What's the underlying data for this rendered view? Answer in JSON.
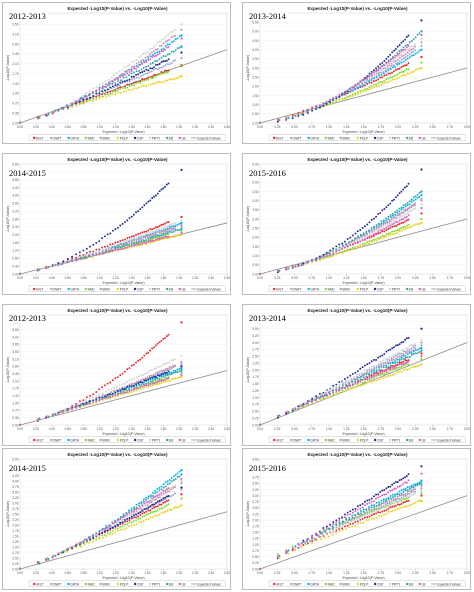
{
  "figure": {
    "colors": {
      "HIST": "#e8242b",
      "DWIT": "#9aa5d6",
      "GRTH": "#00b0f0",
      "NMC": "#7fdc2a",
      "BRKI": "#c890a6",
      "POLP": "#e9d21c",
      "CSP": "#1f2a8f",
      "PRTY": "#d3d3d3",
      "EB": "#2aa6a6",
      "LB": "#e05cc7",
      "Expected Values": "#8c8c8c"
    }
  },
  "chart_data": [
    {
      "type": "scatter",
      "title": "Expected -Log10(P-Value) vs. -Log10(P-Value)",
      "period": "2012-2013",
      "xlabel": "Expected -Log10(P-Value)",
      "ylabel": "-Log10(P-Value)",
      "xlim": [
        0,
        2.6
      ],
      "ylim": [
        0,
        3.9
      ],
      "xticks": [
        "0.00",
        "0.20",
        "0.40",
        "0.60",
        "0.80",
        "1.00",
        "1.20",
        "1.40",
        "1.60",
        "1.80",
        "2.00",
        "2.20",
        "2.40",
        "2.60"
      ],
      "yticks": [
        "0.00",
        "0.35",
        "0.70",
        "1.05",
        "1.40",
        "1.75",
        "2.10",
        "2.45",
        "2.80",
        "3.15",
        "3.50",
        "3.85"
      ],
      "expected_line": [
        [
          0,
          0
        ],
        [
          2.6,
          2.6
        ]
      ],
      "series": [
        {
          "name": "HIST",
          "final_y": 2.05,
          "curve": 1.05
        },
        {
          "name": "DWIT",
          "final_y": 2.3,
          "curve": 1.1
        },
        {
          "name": "GRTH",
          "final_y": 3.1,
          "curve": 1.3
        },
        {
          "name": "NMC",
          "final_y": 2.0,
          "curve": 1.1
        },
        {
          "name": "BRKI",
          "final_y": 3.3,
          "curve": 1.4
        },
        {
          "name": "POLP",
          "final_y": 1.65,
          "curve": 0.9
        },
        {
          "name": "CSP",
          "final_y": 2.5,
          "curve": 1.2
        },
        {
          "name": "PRTY",
          "final_y": 3.5,
          "curve": 1.35
        },
        {
          "name": "EB",
          "final_y": 2.7,
          "curve": 1.2
        },
        {
          "name": "LB",
          "final_y": 3.0,
          "curve": 1.3
        }
      ],
      "legend": [
        "HIST",
        "DWIT",
        "GRTH",
        "NMC",
        "BRKI",
        "POLP",
        "CSP",
        "PRTY",
        "EB",
        "LB",
        "Expected Values"
      ],
      "legend_position": "bottom"
    },
    {
      "type": "scatter",
      "title": "Expected -Log10(P-Value) vs. -Log10(P-Value)",
      "period": "2013-2014",
      "xlabel": "Expected -Log10(P-Value)",
      "ylabel": "-Log10(P-Value)",
      "xlim": [
        0,
        3.0
      ],
      "ylim": [
        0,
        6.0
      ],
      "xticks": [
        "0.00",
        "0.25",
        "0.50",
        "0.75",
        "1.00",
        "1.25",
        "1.50",
        "1.75",
        "2.00",
        "2.25",
        "2.50",
        "2.75",
        "3.00"
      ],
      "yticks": [
        "0.00",
        "0.50",
        "1.00",
        "1.50",
        "2.00",
        "2.50",
        "3.00",
        "3.50",
        "4.00",
        "4.50",
        "5.00",
        "5.50",
        "6.00"
      ],
      "expected_line": [
        [
          0,
          0
        ],
        [
          3.0,
          3.0
        ]
      ],
      "series": [
        {
          "name": "HIST",
          "final_y": 3.6,
          "curve": 1.3
        },
        {
          "name": "DWIT",
          "final_y": 4.2,
          "curve": 1.5
        },
        {
          "name": "GRTH",
          "final_y": 4.0,
          "curve": 1.45
        },
        {
          "name": "NMC",
          "final_y": 3.3,
          "curve": 1.35
        },
        {
          "name": "BRKI",
          "final_y": 4.4,
          "curve": 1.5
        },
        {
          "name": "POLP",
          "final_y": 3.0,
          "curve": 1.25
        },
        {
          "name": "CSP",
          "final_y": 5.6,
          "curve": 1.9
        },
        {
          "name": "PRTY",
          "final_y": 4.6,
          "curve": 1.55
        },
        {
          "name": "EB",
          "final_y": 5.0,
          "curve": 1.7
        },
        {
          "name": "LB",
          "final_y": 4.8,
          "curve": 1.6
        }
      ],
      "legend": [
        "HIST",
        "DWIT",
        "GRTH",
        "NMC",
        "BRKI",
        "POLP",
        "CSP",
        "PRTY",
        "EB",
        "LB",
        "Expected Values"
      ],
      "legend_position": "bottom"
    },
    {
      "type": "scatter",
      "title": "Expected -Log10(P-Value) vs. -Log10(P-Value)",
      "period": "2014-2015",
      "xlabel": "Expected -Log10(P-Value)",
      "ylabel": "-Log10(P-Value)",
      "xlim": [
        0,
        2.6
      ],
      "ylim": [
        0,
        5.6
      ],
      "xticks": [
        "0.00",
        "0.20",
        "0.40",
        "0.60",
        "0.80",
        "1.00",
        "1.20",
        "1.40",
        "1.60",
        "1.80",
        "2.00",
        "2.20",
        "2.40",
        "2.60"
      ],
      "yticks": [
        "0.00",
        "0.40",
        "0.80",
        "1.20",
        "1.60",
        "2.00",
        "2.40",
        "2.80",
        "3.20",
        "3.60",
        "4.00",
        "4.40",
        "4.80",
        "5.20",
        "5.60"
      ],
      "expected_line": [
        [
          0,
          0
        ],
        [
          2.6,
          2.6
        ]
      ],
      "series": [
        {
          "name": "HIST",
          "final_y": 2.9,
          "curve": 1.15
        },
        {
          "name": "DWIT",
          "final_y": 2.4,
          "curve": 1.1
        },
        {
          "name": "GRTH",
          "final_y": 2.6,
          "curve": 1.15
        },
        {
          "name": "NMC",
          "final_y": 2.2,
          "curve": 1.05
        },
        {
          "name": "BRKI",
          "final_y": 2.5,
          "curve": 1.1
        },
        {
          "name": "POLP",
          "final_y": 2.0,
          "curve": 1.0
        },
        {
          "name": "CSP",
          "final_y": 5.3,
          "curve": 1.6
        },
        {
          "name": "PRTY",
          "final_y": 2.7,
          "curve": 1.15
        },
        {
          "name": "EB",
          "final_y": 2.3,
          "curve": 1.1
        },
        {
          "name": "LB",
          "final_y": 2.1,
          "curve": 1.05
        }
      ],
      "legend": [
        "HIST",
        "DWIT",
        "GRTH",
        "NMC",
        "BRKI",
        "POLP",
        "CSP",
        "PRTY",
        "EB",
        "LB",
        "Expected Values"
      ],
      "legend_position": "bottom"
    },
    {
      "type": "scatter",
      "title": "Expected -Log10(P-Value) vs. -Log10(P-Value)",
      "period": "2015-2016",
      "xlabel": "Expected -Log10(P-Value)",
      "ylabel": "-Log10(P-Value)",
      "xlim": [
        0,
        3.0
      ],
      "ylim": [
        0,
        6.0
      ],
      "xticks": [
        "0.00",
        "0.25",
        "0.50",
        "0.75",
        "1.00",
        "1.25",
        "1.50",
        "1.75",
        "2.00",
        "2.25",
        "2.50",
        "2.75",
        "3.00"
      ],
      "yticks": [
        "0.00",
        "0.50",
        "1.00",
        "1.50",
        "2.00",
        "2.50",
        "3.00",
        "3.50",
        "4.00",
        "4.50",
        "5.00",
        "5.50",
        "6.00"
      ],
      "expected_line": [
        [
          0,
          0
        ],
        [
          3.0,
          3.0
        ]
      ],
      "series": [
        {
          "name": "HIST",
          "final_y": 3.3,
          "curve": 1.3
        },
        {
          "name": "DWIT",
          "final_y": 4.0,
          "curve": 1.5
        },
        {
          "name": "GRTH",
          "final_y": 4.3,
          "curve": 1.55
        },
        {
          "name": "NMC",
          "final_y": 3.0,
          "curve": 1.35
        },
        {
          "name": "BRKI",
          "final_y": 4.1,
          "curve": 1.5
        },
        {
          "name": "POLP",
          "final_y": 2.8,
          "curve": 1.3
        },
        {
          "name": "CSP",
          "final_y": 5.7,
          "curve": 1.8
        },
        {
          "name": "PRTY",
          "final_y": 3.8,
          "curve": 1.45
        },
        {
          "name": "EB",
          "final_y": 4.5,
          "curve": 1.6
        },
        {
          "name": "LB",
          "final_y": 3.6,
          "curve": 1.45
        }
      ],
      "legend": [
        "HIST",
        "DWIT",
        "GRTH",
        "NMC",
        "BRKI",
        "POLP",
        "CSP",
        "PRTY",
        "EB",
        "LB",
        "Expected Values"
      ],
      "legend_position": "bottom"
    },
    {
      "type": "scatter",
      "title": "Expected -Log10(P-Value) vs. -Log10(P-Value)",
      "period": "2012-2013",
      "xlabel": "Expected -Log10(P-Value)",
      "ylabel": "-Log10(P-Value)",
      "xlim": [
        0,
        2.6
      ],
      "ylim": [
        0,
        5.25
      ],
      "xticks": [
        "0.00",
        "0.20",
        "0.40",
        "0.60",
        "0.80",
        "1.00",
        "1.20",
        "1.40",
        "1.60",
        "1.80",
        "2.00",
        "2.20",
        "2.40",
        "2.60"
      ],
      "yticks": [
        "0.00",
        "0.35",
        "0.70",
        "1.05",
        "1.40",
        "1.75",
        "2.10",
        "2.45",
        "2.80",
        "3.15",
        "3.50",
        "3.85",
        "4.20",
        "4.55",
        "4.90",
        "5.25"
      ],
      "expected_line": [
        [
          0,
          0
        ],
        [
          2.6,
          2.6
        ]
      ],
      "series": [
        {
          "name": "HIST",
          "final_y": 4.9,
          "curve": 1.5
        },
        {
          "name": "DWIT",
          "final_y": 2.9,
          "curve": 1.1
        },
        {
          "name": "GRTH",
          "final_y": 2.7,
          "curve": 1.05
        },
        {
          "name": "NMC",
          "final_y": 2.5,
          "curve": 1.05
        },
        {
          "name": "BRKI",
          "final_y": 3.0,
          "curve": 1.15
        },
        {
          "name": "POLP",
          "final_y": 2.3,
          "curve": 1.0
        },
        {
          "name": "CSP",
          "final_y": 2.8,
          "curve": 1.1
        },
        {
          "name": "PRTY",
          "final_y": 3.3,
          "curve": 1.15
        },
        {
          "name": "EB",
          "final_y": 2.6,
          "curve": 1.05
        },
        {
          "name": "LB",
          "final_y": 2.4,
          "curve": 1.0
        }
      ],
      "legend": [
        "HIST",
        "DWIT",
        "GRTH",
        "NMC",
        "BRKI",
        "POLP",
        "CSP",
        "PRTY",
        "EB",
        "LB",
        "Expected Values"
      ],
      "legend_position": "bottom"
    },
    {
      "type": "scatter",
      "title": "Expected -Log10(P-Value) vs. -Log10(P-Value)",
      "period": "2013-2014",
      "xlabel": "Expected -Log10(P-Value)",
      "ylabel": "-Log10(P-Value)",
      "xlim": [
        0,
        3.0
      ],
      "ylim": [
        0,
        4.0
      ],
      "xticks": [
        "0.00",
        "0.25",
        "0.50",
        "0.75",
        "1.00",
        "1.25",
        "1.50",
        "1.75",
        "2.00",
        "2.25",
        "2.50",
        "2.75",
        "3.00"
      ],
      "yticks": [
        "0.00",
        "0.25",
        "0.50",
        "0.75",
        "1.00",
        "1.25",
        "1.50",
        "1.75",
        "2.00",
        "2.25",
        "2.50",
        "2.75",
        "3.00",
        "3.25",
        "3.50",
        "3.75",
        "4.00"
      ],
      "expected_line": [
        [
          0,
          0
        ],
        [
          3.0,
          3.0
        ]
      ],
      "series": [
        {
          "name": "HIST",
          "final_y": 2.6,
          "curve": 1.0
        },
        {
          "name": "DWIT",
          "final_y": 3.0,
          "curve": 1.05
        },
        {
          "name": "GRTH",
          "final_y": 2.8,
          "curve": 1.0
        },
        {
          "name": "NMC",
          "final_y": 2.4,
          "curve": 0.95
        },
        {
          "name": "BRKI",
          "final_y": 2.9,
          "curve": 1.05
        },
        {
          "name": "POLP",
          "final_y": 2.2,
          "curve": 0.9
        },
        {
          "name": "CSP",
          "final_y": 3.5,
          "curve": 1.15
        },
        {
          "name": "PRTY",
          "final_y": 3.1,
          "curve": 1.05
        },
        {
          "name": "EB",
          "final_y": 2.7,
          "curve": 1.0
        },
        {
          "name": "LB",
          "final_y": 2.5,
          "curve": 0.95
        }
      ],
      "legend": [
        "HIST",
        "DWIT",
        "GRTH",
        "NMC",
        "BRKI",
        "POLP",
        "CSP",
        "PRTY",
        "EB",
        "LB",
        "Expected Values"
      ],
      "legend_position": "bottom"
    },
    {
      "type": "scatter",
      "title": "Expected -Log10(P-Value) vs. -Log10(P-Value)",
      "period": "2014-2015",
      "xlabel": "Expected -Log10(P-Value)",
      "ylabel": "-Log10(P-Value)",
      "xlim": [
        0,
        2.6
      ],
      "ylim": [
        0,
        5.0
      ],
      "xticks": [
        "0.00",
        "0.20",
        "0.40",
        "0.60",
        "0.80",
        "1.00",
        "1.20",
        "1.40",
        "1.60",
        "1.80",
        "2.00",
        "2.20",
        "2.40",
        "2.60"
      ],
      "yticks": [
        "0.00",
        "0.25",
        "0.50",
        "0.75",
        "1.00",
        "1.25",
        "1.50",
        "1.75",
        "2.00",
        "2.25",
        "2.50",
        "2.75",
        "3.00",
        "3.25",
        "3.50",
        "3.75",
        "4.00",
        "4.25",
        "4.50",
        "4.75",
        "5.00"
      ],
      "expected_line": [
        [
          0,
          0
        ],
        [
          2.6,
          2.6
        ]
      ],
      "series": [
        {
          "name": "HIST",
          "final_y": 3.4,
          "curve": 1.1
        },
        {
          "name": "DWIT",
          "final_y": 3.6,
          "curve": 1.15
        },
        {
          "name": "GRTH",
          "final_y": 4.5,
          "curve": 1.35
        },
        {
          "name": "NMC",
          "final_y": 3.2,
          "curve": 1.1
        },
        {
          "name": "BRKI",
          "final_y": 3.9,
          "curve": 1.2
        },
        {
          "name": "POLP",
          "final_y": 2.9,
          "curve": 1.05
        },
        {
          "name": "CSP",
          "final_y": 3.7,
          "curve": 1.2
        },
        {
          "name": "PRTY",
          "final_y": 4.0,
          "curve": 1.25
        },
        {
          "name": "EB",
          "final_y": 4.3,
          "curve": 1.3
        },
        {
          "name": "LB",
          "final_y": 4.1,
          "curve": 1.25
        }
      ],
      "legend": [
        "HIST",
        "DWIT",
        "GRTH",
        "NMC",
        "BRKI",
        "POLP",
        "CSP",
        "PRTY",
        "EB",
        "LB",
        "Expected Values"
      ],
      "legend_position": "bottom"
    },
    {
      "type": "scatter",
      "title": "Expected -Log10(P-Value) vs. -Log10(P-Value)",
      "period": "2015-2016",
      "xlabel": "Expected -Log10(P-Value)",
      "ylabel": "-Log10(P-Value)",
      "xlim": [
        0,
        3.0
      ],
      "ylim": [
        0,
        4.5
      ],
      "xticks": [
        "0.00",
        "0.25",
        "0.50",
        "0.75",
        "1.00",
        "1.25",
        "1.50",
        "1.75",
        "2.00",
        "2.25",
        "2.50",
        "2.75",
        "3.00"
      ],
      "yticks": [
        "0.00",
        "0.25",
        "0.50",
        "0.75",
        "1.00",
        "1.25",
        "1.50",
        "1.75",
        "2.00",
        "2.25",
        "2.50",
        "2.75",
        "3.00",
        "3.25",
        "3.50",
        "3.75",
        "4.00",
        "4.25",
        "4.50"
      ],
      "expected_line": [
        [
          0,
          0
        ],
        [
          3.0,
          3.0
        ]
      ],
      "series": [
        {
          "name": "HIST",
          "final_y": 3.0,
          "curve": 0.85
        },
        {
          "name": "DWIT",
          "final_y": 3.3,
          "curve": 0.9
        },
        {
          "name": "GRTH",
          "final_y": 3.6,
          "curve": 0.9
        },
        {
          "name": "NMC",
          "final_y": 3.1,
          "curve": 0.75
        },
        {
          "name": "BRKI",
          "final_y": 3.4,
          "curve": 0.9
        },
        {
          "name": "POLP",
          "final_y": 2.8,
          "curve": 0.85
        },
        {
          "name": "CSP",
          "final_y": 4.2,
          "curve": 1.0
        },
        {
          "name": "PRTY",
          "final_y": 3.2,
          "curve": 0.9
        },
        {
          "name": "EB",
          "final_y": 3.5,
          "curve": 0.9
        },
        {
          "name": "LB",
          "final_y": 3.9,
          "curve": 0.95
        }
      ],
      "legend": [
        "HIST",
        "DWIT",
        "GRTH",
        "NMC",
        "BRKI",
        "POLP",
        "CSP",
        "PRTY",
        "EB",
        "LB",
        "Expected Values"
      ],
      "legend_position": "bottom"
    }
  ]
}
